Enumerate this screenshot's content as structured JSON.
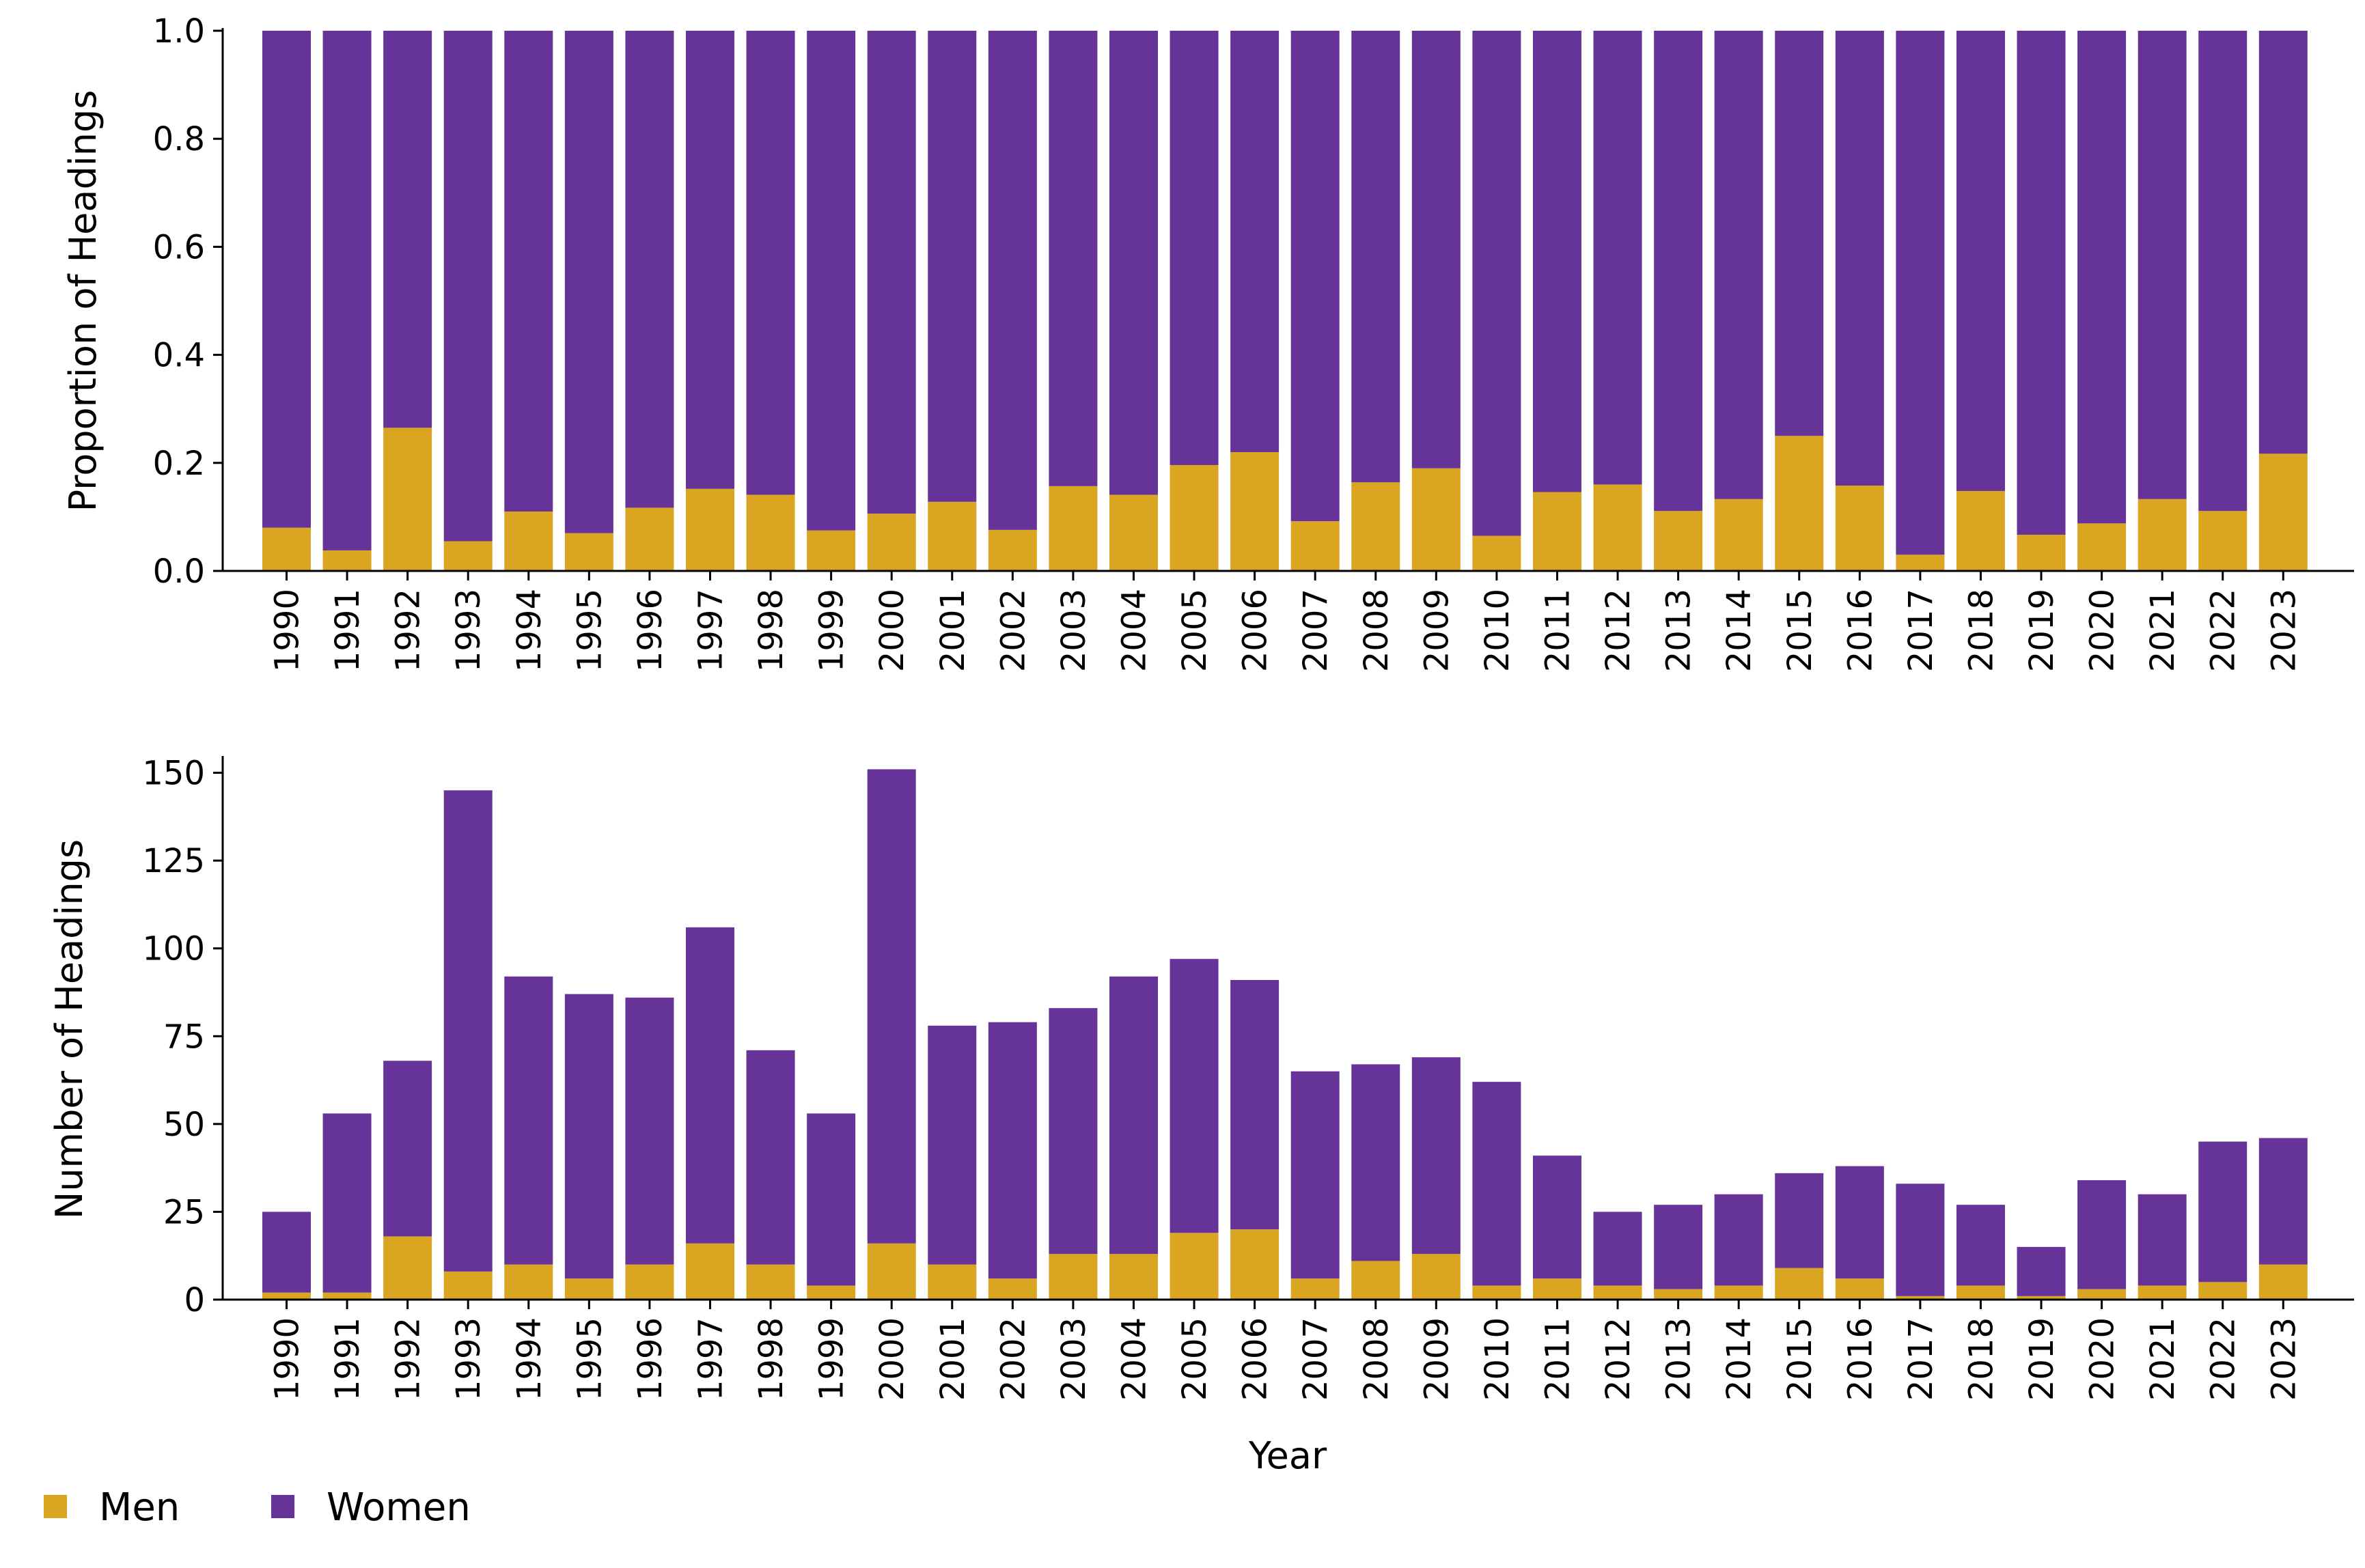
{
  "chart_data": [
    {
      "type": "bar",
      "stacked": true,
      "ylabel": "Proportion of Headings",
      "ylim": [
        0,
        1.0
      ],
      "yticks": [
        "0.0",
        "0.2",
        "0.4",
        "0.6",
        "0.8",
        "1.0"
      ],
      "categories": [
        "1990",
        "1991",
        "1992",
        "1993",
        "1994",
        "1995",
        "1996",
        "1997",
        "1998",
        "1999",
        "2000",
        "2001",
        "2002",
        "2003",
        "2004",
        "2005",
        "2006",
        "2007",
        "2008",
        "2009",
        "2010",
        "2011",
        "2012",
        "2013",
        "2014",
        "2015",
        "2016",
        "2017",
        "2018",
        "2019",
        "2020",
        "2021",
        "2022",
        "2023"
      ],
      "series": [
        {
          "name": "Men",
          "color": "#DAA520",
          "values": [
            0.08,
            0.038,
            0.265,
            0.055,
            0.11,
            0.07,
            0.117,
            0.152,
            0.141,
            0.075,
            0.106,
            0.128,
            0.076,
            0.157,
            0.141,
            0.196,
            0.22,
            0.092,
            0.164,
            0.19,
            0.065,
            0.146,
            0.16,
            0.111,
            0.133,
            0.25,
            0.158,
            0.03,
            0.148,
            0.067,
            0.088,
            0.133,
            0.111,
            0.217
          ]
        },
        {
          "name": "Women",
          "color": "#663399",
          "values": [
            0.92,
            0.962,
            0.735,
            0.945,
            0.89,
            0.93,
            0.883,
            0.848,
            0.859,
            0.925,
            0.894,
            0.872,
            0.924,
            0.843,
            0.859,
            0.804,
            0.78,
            0.908,
            0.836,
            0.81,
            0.935,
            0.854,
            0.84,
            0.889,
            0.867,
            0.75,
            0.842,
            0.97,
            0.852,
            0.933,
            0.912,
            0.867,
            0.889,
            0.783
          ]
        }
      ]
    },
    {
      "type": "bar",
      "stacked": true,
      "xlabel": "Year",
      "ylabel": "Number of Headings",
      "ylim": [
        0,
        154
      ],
      "yticks": [
        "0",
        "25",
        "50",
        "75",
        "100",
        "125",
        "150"
      ],
      "categories": [
        "1990",
        "1991",
        "1992",
        "1993",
        "1994",
        "1995",
        "1996",
        "1997",
        "1998",
        "1999",
        "2000",
        "2001",
        "2002",
        "2003",
        "2004",
        "2005",
        "2006",
        "2007",
        "2008",
        "2009",
        "2010",
        "2011",
        "2012",
        "2013",
        "2014",
        "2015",
        "2016",
        "2017",
        "2018",
        "2019",
        "2020",
        "2021",
        "2022",
        "2023"
      ],
      "series": [
        {
          "name": "Men",
          "color": "#DAA520",
          "values": [
            2,
            2,
            18,
            8,
            10,
            6,
            10,
            16,
            10,
            4,
            16,
            10,
            6,
            13,
            13,
            19,
            20,
            6,
            11,
            13,
            4,
            6,
            4,
            3,
            4,
            9,
            6,
            1,
            4,
            1,
            3,
            4,
            5,
            10
          ]
        },
        {
          "name": "Women",
          "color": "#663399",
          "values": [
            23,
            51,
            50,
            137,
            82,
            81,
            76,
            90,
            61,
            49,
            135,
            68,
            73,
            70,
            79,
            78,
            71,
            59,
            56,
            56,
            58,
            35,
            21,
            24,
            26,
            27,
            32,
            32,
            23,
            14,
            31,
            26,
            40,
            36
          ]
        }
      ]
    }
  ],
  "legend": {
    "placement": "bottom-left",
    "items": [
      {
        "label": "Men",
        "color": "#DAA520"
      },
      {
        "label": "Women",
        "color": "#663399"
      }
    ]
  }
}
